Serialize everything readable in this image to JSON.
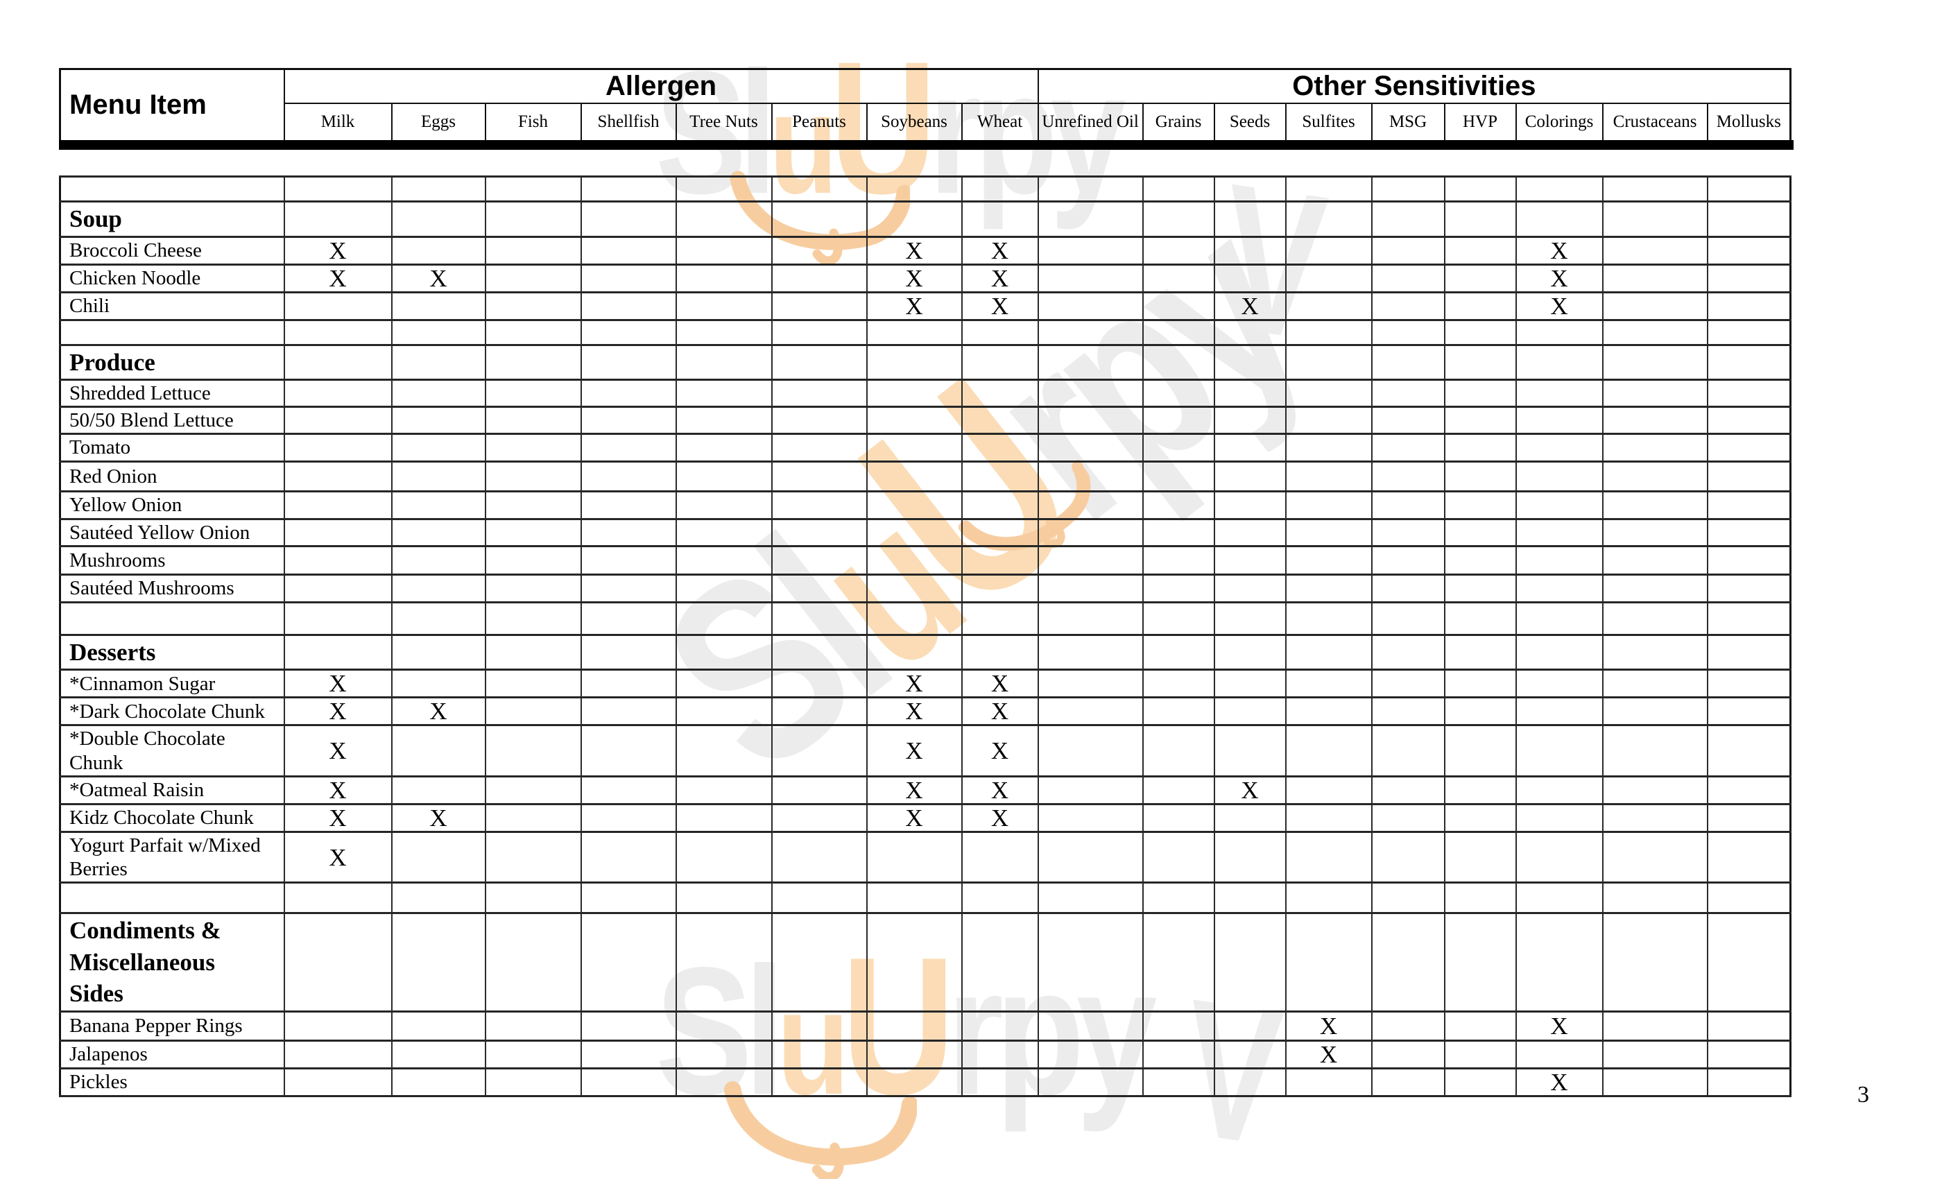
{
  "page": {
    "number": "3"
  },
  "table": {
    "menu_item_header": "Menu Item",
    "groups": [
      {
        "label": "Allergen",
        "span": 8
      },
      {
        "label": "Other Sensitivities",
        "span": 9
      }
    ],
    "columns": [
      "Milk",
      "Eggs",
      "Fish",
      "Shellfish",
      "Tree Nuts",
      "Peanuts",
      "Soybeans",
      "Wheat",
      "Unrefined Oil",
      "Grains",
      "Seeds",
      "Sulfites",
      "MSG",
      "HVP",
      "Colorings",
      "Crustaceans",
      "Mollusks"
    ],
    "mark": "X",
    "rows": [
      {
        "type": "blank",
        "label": "",
        "marks": []
      },
      {
        "type": "section",
        "label": "Soup",
        "marks": []
      },
      {
        "type": "item",
        "label": "Broccoli Cheese",
        "marks": [
          "Milk",
          "Soybeans",
          "Wheat",
          "Colorings"
        ]
      },
      {
        "type": "item",
        "label": "Chicken Noodle",
        "marks": [
          "Milk",
          "Eggs",
          "Soybeans",
          "Wheat",
          "Colorings"
        ]
      },
      {
        "type": "item",
        "label": "Chili",
        "marks": [
          "Soybeans",
          "Wheat",
          "Seeds",
          "Colorings"
        ]
      },
      {
        "type": "blank",
        "label": "",
        "marks": []
      },
      {
        "type": "section",
        "label": "Produce",
        "marks": []
      },
      {
        "type": "item",
        "label": "Shredded Lettuce",
        "marks": []
      },
      {
        "type": "item",
        "label": "50/50 Blend Lettuce",
        "marks": []
      },
      {
        "type": "item",
        "label": "Tomato",
        "marks": []
      },
      {
        "type": "item",
        "label": "Red Onion",
        "marks": []
      },
      {
        "type": "item",
        "label": "Yellow Onion",
        "marks": []
      },
      {
        "type": "item",
        "label": "Sautéed Yellow Onion",
        "marks": []
      },
      {
        "type": "item",
        "label": "Mushrooms",
        "marks": []
      },
      {
        "type": "item",
        "label": "Sautéed Mushrooms",
        "marks": []
      },
      {
        "type": "blank",
        "label": "",
        "marks": []
      },
      {
        "type": "section",
        "label": "Desserts",
        "marks": []
      },
      {
        "type": "item",
        "label": "*Cinnamon Sugar",
        "marks": [
          "Milk",
          "Soybeans",
          "Wheat"
        ]
      },
      {
        "type": "item",
        "label": "*Dark Chocolate Chunk",
        "marks": [
          "Milk",
          "Eggs",
          "Soybeans",
          "Wheat"
        ]
      },
      {
        "type": "item",
        "label": "*Double Chocolate\nChunk",
        "marks": [
          "Milk",
          "Soybeans",
          "Wheat"
        ]
      },
      {
        "type": "item",
        "label": "*Oatmeal Raisin",
        "marks": [
          "Milk",
          "Soybeans",
          "Wheat",
          "Seeds"
        ]
      },
      {
        "type": "item",
        "label": "Kidz Chocolate Chunk",
        "marks": [
          "Milk",
          "Eggs",
          "Soybeans",
          "Wheat"
        ]
      },
      {
        "type": "item",
        "label": "Yogurt Parfait w/Mixed\nBerries",
        "marks": [
          "Milk"
        ]
      },
      {
        "type": "blank",
        "label": "",
        "marks": []
      },
      {
        "type": "section",
        "label": "Condiments &\nMiscellaneous\nSides",
        "marks": []
      },
      {
        "type": "item",
        "label": "Banana Pepper Rings",
        "marks": [
          "Sulfites",
          "Colorings"
        ]
      },
      {
        "type": "item",
        "label": "Jalapenos",
        "marks": [
          "Sulfites"
        ]
      },
      {
        "type": "item",
        "label": "Pickles",
        "marks": [
          "Colorings"
        ]
      }
    ]
  },
  "watermark": {
    "brand": "Sluurpy",
    "segments": [
      {
        "text": "Sl",
        "tone": "gray",
        "size": 1.0
      },
      {
        "text": "u",
        "tone": "orange",
        "size": 0.82
      },
      {
        "text": "U",
        "tone": "orange",
        "size": 1.08
      },
      {
        "text": "rpy",
        "tone": "gray",
        "size": 1.0
      }
    ],
    "extra_glyph": "V",
    "gray": "#ececec",
    "orange": "#fbdcb6",
    "swirl_orange": "#f7cda0"
  }
}
